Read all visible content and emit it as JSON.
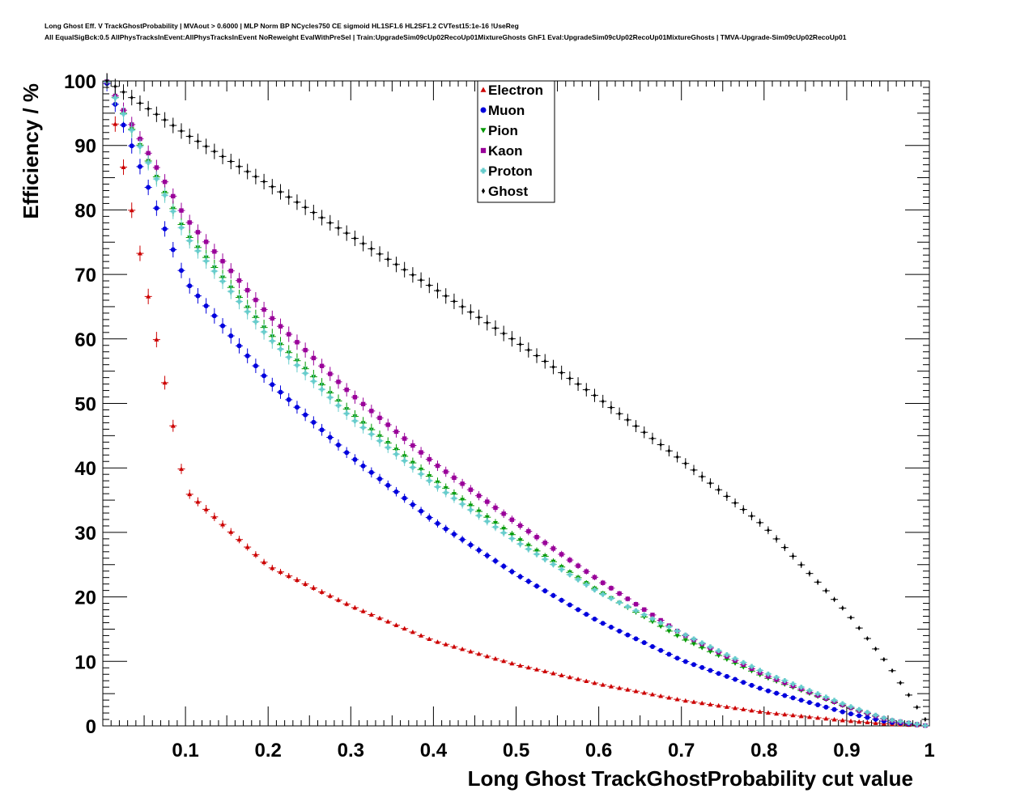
{
  "header": {
    "title_line1": "Long Ghost Eff. V TrackGhostProbability | MVAout > 0.6000 | MLP Norm BP NCycles750 CE sigmoid HL1SF1.6 HL2SF1.2 CVTest15:1e-16 !UseReg",
    "title_line2": "All EqualSigBck:0.5 AllPhysTracksInEvent:AllPhysTracksInEvent NoReweight EvalWithPreSel | Train:UpgradeSim09cUp02RecoUp01MixtureGhosts GhF1 Eval:UpgradeSim09cUp02RecoUp01MixtureGhosts | TMVA-Upgrade-Sim09cUp02RecoUp01"
  },
  "chart_data": {
    "type": "scatter",
    "xlabel": "Long Ghost TrackGhostProbability cut value",
    "ylabel": "Efficiency / %",
    "xlim": [
      0,
      1
    ],
    "ylim": [
      0,
      100
    ],
    "xticks": [
      "0.1",
      "0.2",
      "0.3",
      "0.4",
      "0.5",
      "0.6",
      "0.7",
      "0.8",
      "0.9",
      "1"
    ],
    "yticks": [
      "0",
      "10",
      "20",
      "30",
      "40",
      "50",
      "60",
      "70",
      "80",
      "90",
      "100"
    ],
    "grid": false,
    "legend_position": "top-center",
    "x": [
      0.005,
      0.1,
      0.2,
      0.3,
      0.4,
      0.5,
      0.6,
      0.7,
      0.8,
      0.9,
      0.95,
      0.995
    ],
    "series": [
      {
        "name": "Electron",
        "marker": "triangle-up",
        "color": "#cc0000",
        "values": [
          100,
          36.5,
          24.8,
          18.6,
          13.2,
          9.5,
          6.5,
          4.0,
          2.1,
          0.8,
          0.3,
          0.05
        ]
      },
      {
        "name": "Muon",
        "marker": "circle",
        "color": "#0000dd",
        "values": [
          99.6,
          69.0,
          53.5,
          41.8,
          31.8,
          23.5,
          16.2,
          10.2,
          5.6,
          2.0,
          0.6,
          0.05
        ]
      },
      {
        "name": "Pion",
        "marker": "triangle-down",
        "color": "#009900",
        "values": [
          99.9,
          76.5,
          61.0,
          48.5,
          38.2,
          29.2,
          20.9,
          13.6,
          7.6,
          2.9,
          0.9,
          0.05
        ]
      },
      {
        "name": "Kaon",
        "marker": "square",
        "color": "#990099",
        "values": [
          99.9,
          78.8,
          63.8,
          51.5,
          40.8,
          31.5,
          22.6,
          14.3,
          7.9,
          3.0,
          0.9,
          0.05
        ]
      },
      {
        "name": "Proton",
        "marker": "cross",
        "color": "#66cccc",
        "values": [
          99.9,
          76.0,
          60.3,
          47.8,
          37.5,
          28.6,
          20.7,
          14.4,
          8.3,
          3.2,
          1.0,
          0.05
        ]
      },
      {
        "name": "Ghost",
        "marker": "diamond",
        "color": "#000000",
        "values": [
          100,
          91.8,
          84.0,
          76.0,
          67.9,
          59.6,
          50.8,
          41.2,
          31.0,
          17.6,
          9.5,
          1.0
        ]
      }
    ]
  }
}
